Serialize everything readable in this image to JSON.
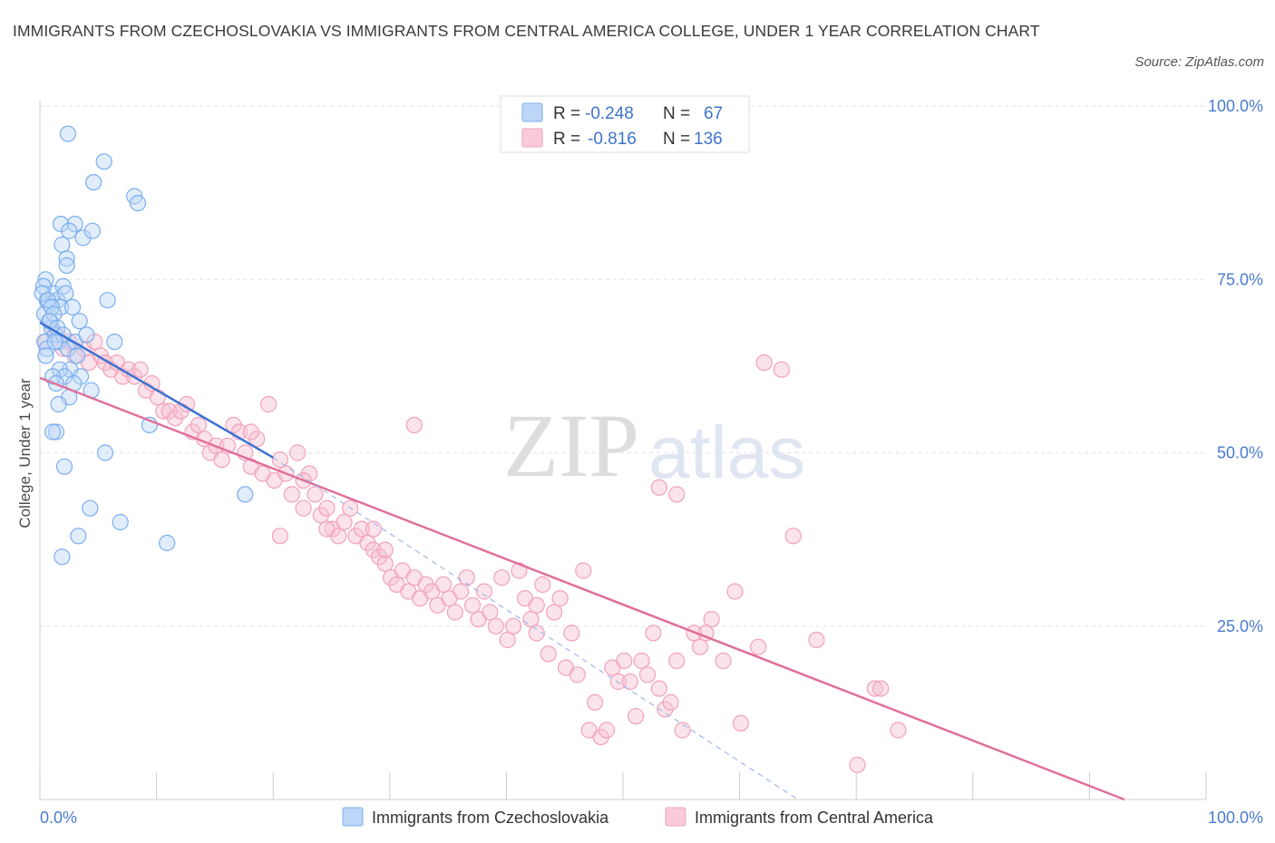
{
  "title": "IMMIGRANTS FROM CZECHOSLOVAKIA VS IMMIGRANTS FROM CENTRAL AMERICA COLLEGE, UNDER 1 YEAR CORRELATION CHART",
  "source": "Source: ZipAtlas.com",
  "watermark": {
    "zip": "ZIP",
    "atlas": "atlas"
  },
  "legend": {
    "r_label": "R =",
    "n_label": "N =",
    "rows": [
      {
        "r": "-0.248",
        "n": "67"
      },
      {
        "r": "-0.816",
        "n": "136"
      }
    ]
  },
  "chart_data": {
    "type": "scatter",
    "ylabel": "College, Under 1 year",
    "xlim": [
      0,
      100
    ],
    "ylim": [
      0,
      100
    ],
    "x_tick_labels": [
      "0.0%",
      "100.0%"
    ],
    "y_tick_labels": [
      "25.0%",
      "50.0%",
      "75.0%",
      "100.0%"
    ],
    "y_ticks": [
      25,
      50,
      75,
      100
    ],
    "grid": true,
    "legend_position": "top-center",
    "colors": {
      "czech": "#7aaef0",
      "central": "#f2a0bb",
      "czech_line": "#3b72d0",
      "central_line": "#e0709a"
    },
    "series": [
      {
        "name": "Immigrants from Czechoslovakia",
        "trend": {
          "x": [
            0,
            20
          ],
          "y": [
            68.8,
            49.3
          ]
        },
        "trend_ext": {
          "x": [
            20,
            65
          ],
          "y": [
            49.3,
            0
          ]
        },
        "points": [
          [
            0.6,
            72
          ],
          [
            0.8,
            71.5
          ],
          [
            0.4,
            70
          ],
          [
            1.0,
            68
          ],
          [
            1.2,
            73
          ],
          [
            0.5,
            75
          ],
          [
            1.5,
            72
          ],
          [
            2.0,
            74
          ],
          [
            2.2,
            73
          ],
          [
            1.8,
            71
          ],
          [
            0.9,
            69
          ],
          [
            1.3,
            67
          ],
          [
            1.6,
            66
          ],
          [
            2.4,
            65
          ],
          [
            3.0,
            66
          ],
          [
            3.2,
            64
          ],
          [
            2.6,
            62
          ],
          [
            1.7,
            62
          ],
          [
            2.1,
            61
          ],
          [
            3.5,
            61
          ],
          [
            1.1,
            61
          ],
          [
            1.4,
            60
          ],
          [
            2.9,
            60
          ],
          [
            4.4,
            59
          ],
          [
            2.5,
            58
          ],
          [
            3.0,
            83
          ],
          [
            1.8,
            83
          ],
          [
            2.5,
            82
          ],
          [
            3.7,
            81
          ],
          [
            1.9,
            80
          ],
          [
            4.5,
            82
          ],
          [
            2.3,
            78
          ],
          [
            2.3,
            77
          ],
          [
            5.5,
            92
          ],
          [
            4.6,
            89
          ],
          [
            2.4,
            96
          ],
          [
            8.1,
            87
          ],
          [
            8.4,
            86
          ],
          [
            5.8,
            72
          ],
          [
            1.4,
            53
          ],
          [
            1.1,
            53
          ],
          [
            2.1,
            48
          ],
          [
            3.3,
            38
          ],
          [
            4.3,
            42
          ],
          [
            5.6,
            50
          ],
          [
            6.9,
            40
          ],
          [
            10.9,
            37
          ],
          [
            9.4,
            54
          ],
          [
            1.9,
            35
          ],
          [
            1.6,
            57
          ],
          [
            6.4,
            66
          ],
          [
            0.3,
            74
          ],
          [
            0.2,
            73
          ],
          [
            0.7,
            72
          ],
          [
            1.0,
            71
          ],
          [
            1.2,
            70
          ],
          [
            0.8,
            69
          ],
          [
            1.5,
            68
          ],
          [
            2.0,
            67
          ],
          [
            0.4,
            66
          ],
          [
            0.6,
            65
          ],
          [
            2.8,
            71
          ],
          [
            3.4,
            69
          ],
          [
            4.0,
            67
          ],
          [
            1.3,
            66
          ],
          [
            17.6,
            44
          ],
          [
            0.5,
            64
          ]
        ]
      },
      {
        "name": "Immigrants from Central America",
        "trend": {
          "x": [
            0,
            93
          ],
          "y": [
            60.8,
            0
          ]
        },
        "points": [
          [
            0.5,
            66
          ],
          [
            1.0,
            68
          ],
          [
            1.5,
            67
          ],
          [
            2.0,
            65
          ],
          [
            2.5,
            66
          ],
          [
            3.0,
            64
          ],
          [
            3.8,
            65
          ],
          [
            4.2,
            63
          ],
          [
            4.7,
            66
          ],
          [
            5.2,
            64
          ],
          [
            5.6,
            63
          ],
          [
            6.1,
            62
          ],
          [
            6.6,
            63
          ],
          [
            7.1,
            61
          ],
          [
            7.6,
            62
          ],
          [
            8.1,
            61
          ],
          [
            8.6,
            62
          ],
          [
            9.1,
            59
          ],
          [
            9.6,
            60
          ],
          [
            10.1,
            58
          ],
          [
            10.6,
            56
          ],
          [
            11.1,
            56
          ],
          [
            11.6,
            55
          ],
          [
            12.1,
            56
          ],
          [
            12.6,
            57
          ],
          [
            13.1,
            53
          ],
          [
            13.6,
            54
          ],
          [
            14.1,
            52
          ],
          [
            14.6,
            50
          ],
          [
            15.1,
            51
          ],
          [
            15.6,
            49
          ],
          [
            16.1,
            51
          ],
          [
            16.6,
            54
          ],
          [
            17.1,
            53
          ],
          [
            17.6,
            50
          ],
          [
            18.1,
            48
          ],
          [
            18.6,
            52
          ],
          [
            19.1,
            47
          ],
          [
            19.6,
            57
          ],
          [
            20.1,
            46
          ],
          [
            20.6,
            49
          ],
          [
            21.1,
            47
          ],
          [
            21.6,
            44
          ],
          [
            22.1,
            50
          ],
          [
            22.6,
            42
          ],
          [
            23.1,
            47
          ],
          [
            23.6,
            44
          ],
          [
            24.1,
            41
          ],
          [
            24.6,
            42
          ],
          [
            25.1,
            39
          ],
          [
            25.6,
            38
          ],
          [
            26.1,
            40
          ],
          [
            26.6,
            42
          ],
          [
            27.1,
            38
          ],
          [
            27.6,
            39
          ],
          [
            28.1,
            37
          ],
          [
            28.6,
            36
          ],
          [
            29.1,
            35
          ],
          [
            29.6,
            34
          ],
          [
            30.1,
            32
          ],
          [
            30.6,
            31
          ],
          [
            31.1,
            33
          ],
          [
            31.6,
            30
          ],
          [
            32.1,
            32
          ],
          [
            32.6,
            29
          ],
          [
            33.1,
            31
          ],
          [
            33.6,
            30
          ],
          [
            34.1,
            28
          ],
          [
            34.6,
            31
          ],
          [
            35.1,
            29
          ],
          [
            35.6,
            27
          ],
          [
            36.1,
            30
          ],
          [
            36.6,
            32
          ],
          [
            37.1,
            28
          ],
          [
            37.6,
            26
          ],
          [
            38.1,
            30
          ],
          [
            38.6,
            27
          ],
          [
            39.1,
            25
          ],
          [
            39.6,
            32
          ],
          [
            40.1,
            23
          ],
          [
            40.6,
            25
          ],
          [
            41.1,
            33
          ],
          [
            41.6,
            29
          ],
          [
            42.1,
            26
          ],
          [
            42.6,
            24
          ],
          [
            43.1,
            31
          ],
          [
            43.6,
            21
          ],
          [
            44.1,
            27
          ],
          [
            44.6,
            29
          ],
          [
            45.1,
            19
          ],
          [
            45.6,
            24
          ],
          [
            46.1,
            18
          ],
          [
            46.6,
            33
          ],
          [
            47.1,
            10
          ],
          [
            47.6,
            14
          ],
          [
            48.1,
            9
          ],
          [
            48.6,
            10
          ],
          [
            49.1,
            19
          ],
          [
            49.6,
            17
          ],
          [
            50.1,
            20
          ],
          [
            50.6,
            17
          ],
          [
            51.1,
            12
          ],
          [
            51.6,
            20
          ],
          [
            52.1,
            18
          ],
          [
            52.6,
            24
          ],
          [
            53.1,
            16
          ],
          [
            53.6,
            13
          ],
          [
            54.1,
            14
          ],
          [
            54.6,
            20
          ],
          [
            55.1,
            10
          ],
          [
            56.1,
            24
          ],
          [
            56.6,
            22
          ],
          [
            57.1,
            24
          ],
          [
            57.6,
            26
          ],
          [
            58.6,
            20
          ],
          [
            59.6,
            30
          ],
          [
            60.1,
            11
          ],
          [
            61.6,
            22
          ],
          [
            62.1,
            63
          ],
          [
            63.6,
            62
          ],
          [
            64.6,
            38
          ],
          [
            66.6,
            23
          ],
          [
            71.6,
            16
          ],
          [
            72.1,
            16
          ],
          [
            73.6,
            10
          ],
          [
            70.1,
            5
          ],
          [
            53.1,
            45
          ],
          [
            54.6,
            44
          ],
          [
            32.1,
            54
          ],
          [
            29.6,
            36
          ],
          [
            28.6,
            39
          ],
          [
            22.6,
            46
          ],
          [
            18.1,
            53
          ],
          [
            20.6,
            38
          ],
          [
            24.6,
            39
          ],
          [
            42.6,
            28
          ]
        ]
      }
    ]
  },
  "bottom_legend": {
    "czech": "Immigrants from Czechoslovakia",
    "central": "Immigrants from Central America"
  }
}
